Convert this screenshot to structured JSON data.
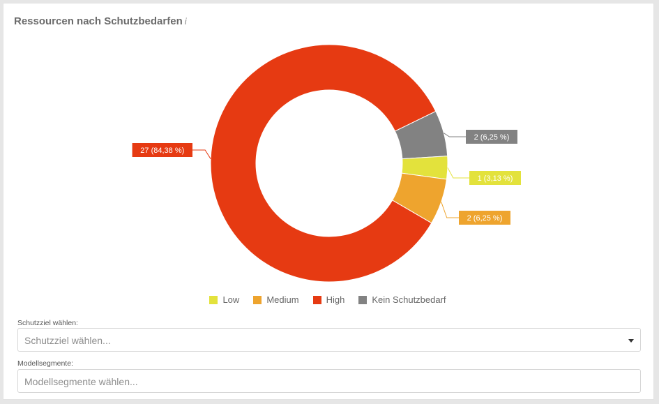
{
  "header": {
    "title": "Ressourcen nach Schutzbedarfen",
    "info_glyph": "i"
  },
  "chart_data": {
    "type": "pie",
    "variant": "donut",
    "title": "Ressourcen nach Schutzbedarfen",
    "series": [
      {
        "name": "Low",
        "value": 1,
        "label": "1 (3,13 %)",
        "color": "#e3e23c"
      },
      {
        "name": "Medium",
        "value": 2,
        "label": "2 (6,25 %)",
        "color": "#eea42e"
      },
      {
        "name": "High",
        "value": 27,
        "label": "27 (84,38 %)",
        "color": "#e63a12"
      },
      {
        "name": "Kein Schutzbedarf",
        "value": 2,
        "label": "2 (6,25 %)",
        "color": "#828282"
      }
    ],
    "legend_position": "bottom"
  },
  "filters": {
    "schutzziel": {
      "label": "Schutzziel wählen:",
      "placeholder": "Schutzziel wählen..."
    },
    "modellsegmente": {
      "label": "Modellsegmente:",
      "placeholder": "Modellsegmente wählen..."
    }
  }
}
